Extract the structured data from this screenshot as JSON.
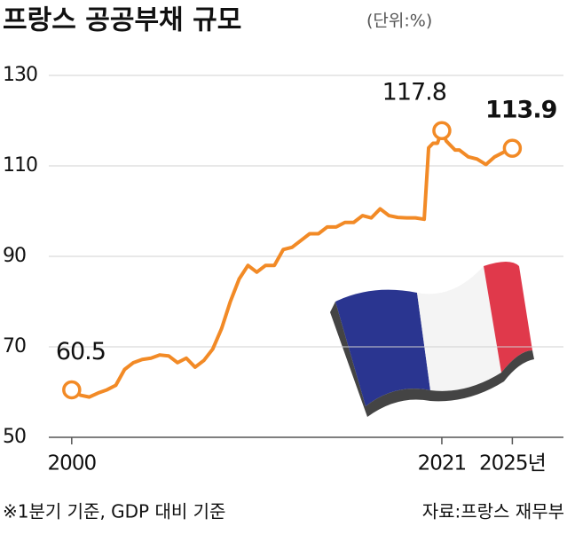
{
  "chart_data": {
    "type": "line",
    "title": "프랑스 공공부채 규모",
    "unit_label": "(단위:%)",
    "footnote": "※1분기 기준, GDP 대비 기준",
    "source": "자료:프랑스 재무부",
    "x": [
      2000,
      2000.5,
      2001,
      2001.5,
      2002,
      2002.5,
      2003,
      2003.5,
      2004,
      2004.5,
      2005,
      2005.5,
      2006,
      2006.5,
      2007,
      2007.5,
      2008,
      2008.5,
      2009,
      2009.5,
      2010,
      2010.5,
      2011,
      2011.5,
      2012,
      2012.5,
      2013,
      2013.5,
      2014,
      2014.5,
      2015,
      2015.5,
      2016,
      2016.5,
      2017,
      2017.5,
      2018,
      2018.5,
      2019,
      2019.5,
      2020,
      2020.25,
      2020.5,
      2020.75,
      2021,
      2021.25,
      2021.5,
      2021.75,
      2022,
      2022.5,
      2023,
      2023.5,
      2024,
      2024.5,
      2025
    ],
    "series": [
      {
        "color": "#f28a26",
        "values": [
          60.5,
          59.3,
          58.9,
          59.8,
          60.5,
          61.5,
          65,
          66.5,
          67.2,
          67.5,
          68.2,
          68,
          66.5,
          67.5,
          65.5,
          67,
          69.5,
          74,
          80,
          85,
          88,
          86.5,
          88,
          88,
          91.5,
          92,
          93.5,
          95,
          95,
          96.5,
          96.5,
          97.5,
          97.5,
          99,
          98.5,
          100.5,
          99,
          98.6,
          98.5,
          98.5,
          98.2,
          114,
          115,
          115,
          117.8,
          115.5,
          114.5,
          113.5,
          113.5,
          112,
          111.5,
          110.3,
          112,
          113,
          113.9
        ],
        "value_labels": [
          "60.5",
          null,
          null,
          null,
          null,
          null,
          null,
          null,
          null,
          null,
          null,
          null,
          null,
          null,
          null,
          null,
          null,
          null,
          null,
          null,
          null,
          null,
          null,
          null,
          null,
          null,
          null,
          null,
          null,
          null,
          null,
          null,
          null,
          null,
          null,
          null,
          null,
          null,
          null,
          null,
          null,
          null,
          null,
          null,
          "117.8",
          null,
          null,
          null,
          null,
          null,
          null,
          null,
          null,
          null,
          "113.9"
        ]
      }
    ],
    "xlim": [
      1998.7,
      2027.9
    ],
    "xticks": [
      2000,
      2021,
      {
        "value": 2025,
        "label": "2025년"
      }
    ],
    "ylim": [
      50,
      130
    ],
    "yticks": [
      50,
      70,
      90,
      110,
      130
    ],
    "grid": true
  }
}
